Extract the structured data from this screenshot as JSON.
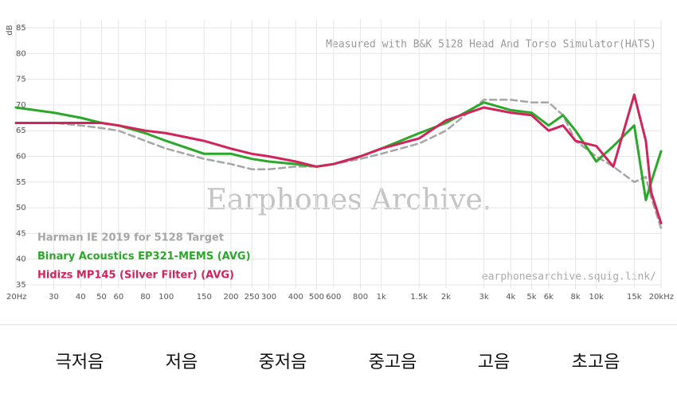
{
  "chart_data": {
    "type": "line",
    "y_axis_label": "dB",
    "annotation": "Measured with B&K 5128 Head And Torso Simulator(HATS)",
    "watermark": "Earphones Archive.",
    "source": "earphonesarchive.squig.link/",
    "log_x": true,
    "grid": true,
    "legend_position": "lower-left",
    "x": [
      20,
      30,
      40,
      50,
      60,
      80,
      100,
      150,
      200,
      250,
      300,
      400,
      500,
      600,
      800,
      1000,
      1500,
      2000,
      3000,
      4000,
      5000,
      6000,
      7000,
      8000,
      10000,
      12000,
      15000,
      17000,
      18000,
      20000
    ],
    "series": [
      {
        "name": "Harman IE 2019 for 5128 Target",
        "color": "#a6a6a6",
        "dashed": true,
        "values": [
          66.5,
          66.5,
          66,
          65.5,
          65,
          63,
          61.5,
          59.5,
          58.5,
          57.5,
          57.5,
          58,
          58,
          58.5,
          59.5,
          60.5,
          62.5,
          65,
          71,
          71,
          70.5,
          70.5,
          68,
          63,
          60,
          58,
          55,
          56,
          52,
          46
        ]
      },
      {
        "name": "Binary Acoustics EP321-MEMS (AVG)",
        "color": "#2aa82a",
        "dashed": false,
        "values": [
          69.5,
          68.5,
          67.5,
          66.5,
          66,
          64.5,
          63,
          60.5,
          60.5,
          59.5,
          59,
          58.5,
          58,
          58.5,
          60,
          61.5,
          64.5,
          66.5,
          70.5,
          69,
          68.5,
          66,
          68,
          65,
          59,
          62,
          66,
          51.5,
          55,
          61
        ]
      },
      {
        "name": "Hidizs MP145 (Silver Filter) (AVG)",
        "color": "#d0245a",
        "dashed": false,
        "values": [
          66.5,
          66.5,
          66.5,
          66.5,
          66,
          65,
          64.5,
          63,
          61.5,
          60.5,
          60,
          59,
          58,
          58.5,
          60,
          61.5,
          63.5,
          67,
          69.5,
          68.5,
          68,
          65,
          66,
          63,
          62,
          58,
          72,
          63,
          53,
          47
        ]
      }
    ],
    "xlim": [
      20,
      20000
    ],
    "xticks": [
      {
        "value": 20,
        "label": "20Hz"
      },
      30,
      40,
      50,
      60,
      80,
      100,
      150,
      200,
      250,
      300,
      400,
      500,
      600,
      800,
      {
        "value": 1000,
        "label": "1k"
      },
      {
        "value": 1500,
        "label": "1.5k"
      },
      {
        "value": 2000,
        "label": "2k"
      },
      {
        "value": 3000,
        "label": "3k"
      },
      {
        "value": 4000,
        "label": "4k"
      },
      {
        "value": 5000,
        "label": "5k"
      },
      {
        "value": 6000,
        "label": "6k"
      },
      {
        "value": 8000,
        "label": "8k"
      },
      {
        "value": 10000,
        "label": "10k"
      },
      {
        "value": 15000,
        "label": "15k"
      },
      {
        "value": 20000,
        "label": "20kHz"
      }
    ],
    "ylim": [
      35,
      85
    ],
    "yticks": [
      35,
      40,
      45,
      50,
      55,
      60,
      65,
      70,
      75,
      80,
      85
    ]
  },
  "frequency_bands": [
    "극저음",
    "저음",
    "중저음",
    "중고음",
    "고음",
    "초고음"
  ]
}
